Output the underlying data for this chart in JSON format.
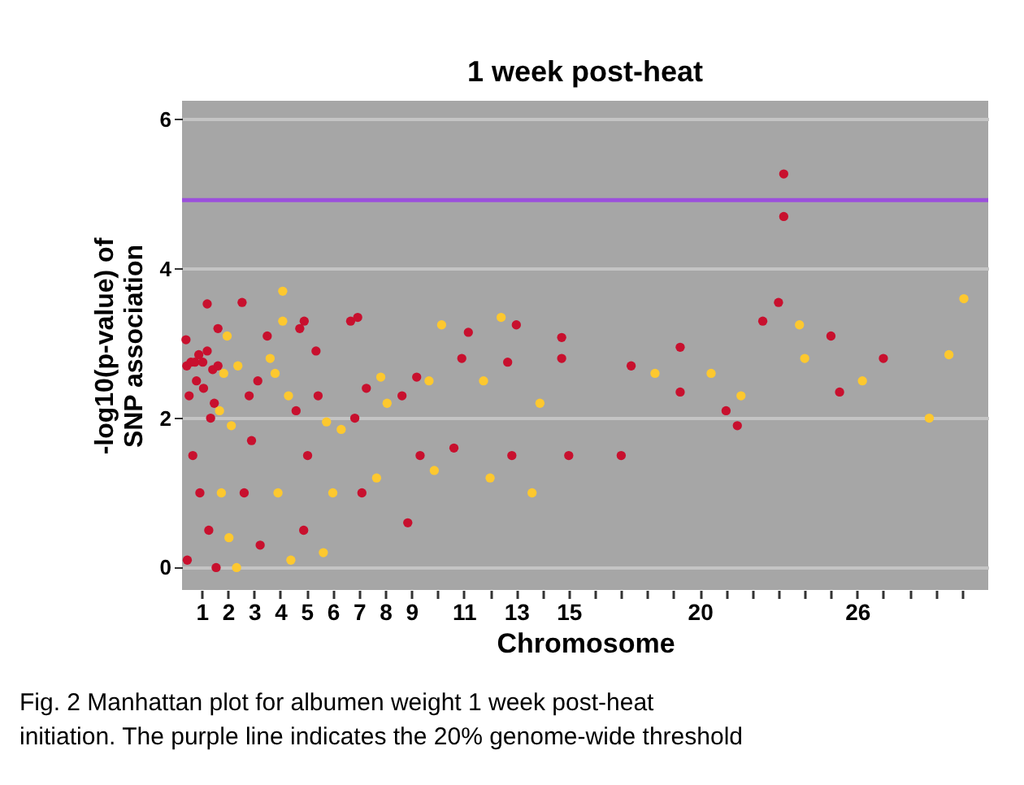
{
  "chart_data": {
    "type": "scatter",
    "title": "1 week post-heat",
    "xlabel": "Chromosome",
    "ylabel": "-log10(p-value) of SNP association",
    "annotations": [
      "Fig. 2  Manhattan plot for albumen weight 1 week post-heat",
      "initiation. The purple line indicates the 20% genome-wide threshold"
    ],
    "xlim": [
      0.25,
      31
    ],
    "ylim": [
      -0.3,
      6.25
    ],
    "yticks": [
      0,
      2,
      4,
      6
    ],
    "xticks": [
      1,
      2,
      3,
      4,
      5,
      6,
      7,
      8,
      9,
      {
        "value": 10,
        "label": null
      },
      11,
      {
        "value": 12,
        "label": null
      },
      13,
      {
        "value": 14,
        "label": null
      },
      15,
      {
        "value": 16,
        "label": null
      },
      {
        "value": 17,
        "label": null
      },
      {
        "value": 18,
        "label": null
      },
      {
        "value": 19,
        "label": null
      },
      20,
      {
        "value": 21,
        "label": null
      },
      {
        "value": 22,
        "label": null
      },
      {
        "value": 23,
        "label": null
      },
      {
        "value": 24,
        "label": null
      },
      {
        "value": 25,
        "label": null
      },
      26,
      {
        "value": 27,
        "label": null
      },
      {
        "value": 28,
        "label": null
      },
      {
        "value": 29,
        "label": null
      },
      {
        "value": 30,
        "label": null
      }
    ],
    "grid": "y",
    "legend": false,
    "marker": "circle",
    "ref_lines": [
      {
        "axis": "y",
        "value": 4.92,
        "color": "#9b4fdc"
      }
    ],
    "series": [
      {
        "color": "#c8102e",
        "x": [
          0.4,
          0.43,
          0.59,
          0.74,
          0.89,
          1.04,
          1.21,
          1.21,
          1.42,
          1.62,
          1.62,
          0.52,
          0.8,
          1.07,
          1.34,
          1.48,
          0.66,
          0.93,
          1.27,
          0.45,
          1.55,
          2.54,
          2.81,
          3.14,
          3.5,
          2.9,
          2.62,
          3.23,
          4.74,
          4.91,
          5.36,
          5.44,
          4.6,
          5.04,
          4.89,
          6.68,
          6.95,
          7.28,
          6.84,
          7.11,
          8.64,
          9.2,
          9.33,
          8.86,
          11.17,
          10.92,
          10.62,
          13,
          12.67,
          12.83,
          14.73,
          14.73,
          15,
          17.38,
          17,
          19.25,
          19.25,
          21,
          21.43,
          23.2,
          23.2,
          23,
          22.4,
          25,
          25.33,
          27
        ],
        "values": [
          3.05,
          2.7,
          2.75,
          2.75,
          2.85,
          2.75,
          3.53,
          2.9,
          2.65,
          3.2,
          2.7,
          2.3,
          2.5,
          2.4,
          2.0,
          2.2,
          1.5,
          1.0,
          0.5,
          0.1,
          0.0,
          3.55,
          2.3,
          2.5,
          3.1,
          1.7,
          1.0,
          0.3,
          3.2,
          3.3,
          2.9,
          2.3,
          2.1,
          1.5,
          0.5,
          3.3,
          3.35,
          2.4,
          2.0,
          1.0,
          2.3,
          2.55,
          1.5,
          0.6,
          3.15,
          2.8,
          1.6,
          3.25,
          2.75,
          1.5,
          3.08,
          2.8,
          1.5,
          2.7,
          1.5,
          2.95,
          2.35,
          2.1,
          1.9,
          5.27,
          4.7,
          3.55,
          3.3,
          3.1,
          2.35,
          2.8
        ]
      },
      {
        "color": "#fdc82f",
        "x": [
          1.84,
          1.97,
          2.38,
          2.13,
          1.68,
          1.75,
          2.04,
          2.33,
          4.09,
          4.09,
          3.61,
          3.8,
          4.31,
          3.91,
          4.4,
          5.76,
          6.32,
          6,
          5.64,
          7.83,
          8.07,
          7.67,
          9.67,
          10.15,
          9.87,
          12.42,
          11.75,
          12,
          13.9,
          13.6,
          18.29,
          20.43,
          21.57,
          23.8,
          24,
          26.2,
          30.07,
          29.5,
          28.75
        ],
        "values": [
          2.6,
          3.1,
          2.7,
          1.9,
          2.1,
          1.0,
          0.4,
          0.0,
          3.7,
          3.3,
          2.8,
          2.6,
          2.3,
          1.0,
          0.1,
          1.95,
          1.85,
          1.0,
          0.2,
          2.55,
          2.2,
          1.2,
          2.5,
          3.25,
          1.3,
          3.35,
          2.5,
          1.2,
          2.2,
          1.0,
          2.6,
          2.6,
          2.3,
          3.25,
          2.8,
          2.5,
          3.6,
          2.85,
          2.0
        ]
      }
    ]
  }
}
